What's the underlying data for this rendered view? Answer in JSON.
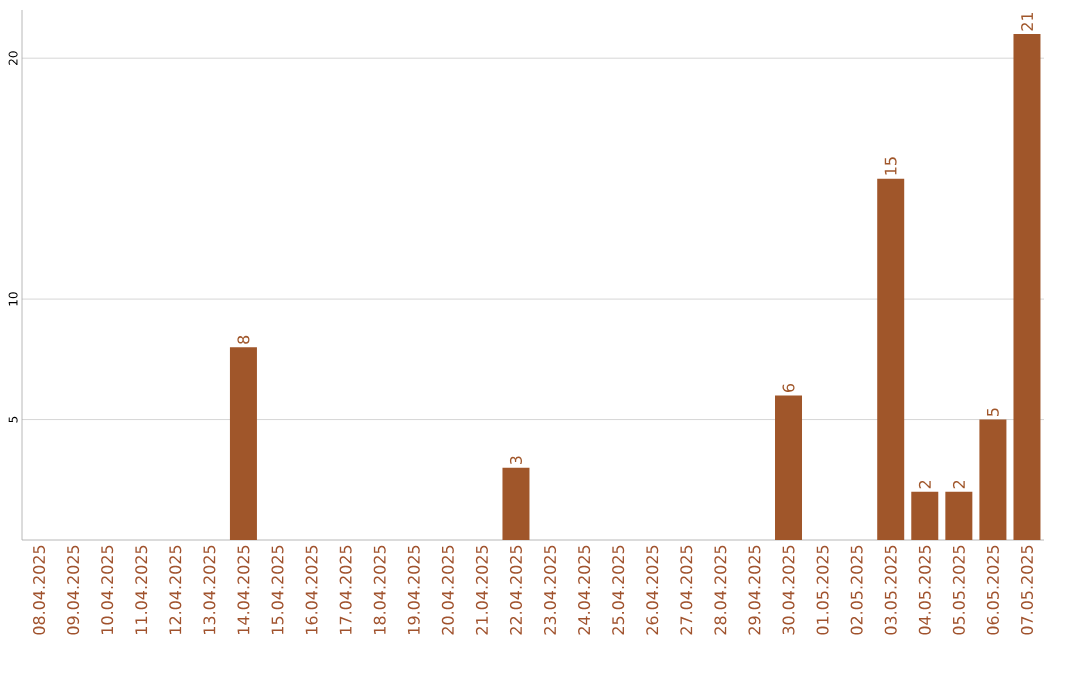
{
  "chart_data": {
    "type": "bar",
    "categories": [
      "08.04.2025",
      "09.04.2025",
      "10.04.2025",
      "11.04.2025",
      "12.04.2025",
      "13.04.2025",
      "14.04.2025",
      "15.04.2025",
      "16.04.2025",
      "17.04.2025",
      "18.04.2025",
      "19.04.2025",
      "20.04.2025",
      "21.04.2025",
      "22.04.2025",
      "23.04.2025",
      "24.04.2025",
      "25.04.2025",
      "26.04.2025",
      "27.04.2025",
      "28.04.2025",
      "29.04.2025",
      "30.04.2025",
      "01.05.2025",
      "02.05.2025",
      "03.05.2025",
      "04.05.2025",
      "05.05.2025",
      "06.05.2025",
      "07.05.2025"
    ],
    "values": [
      0,
      0,
      0,
      0,
      0,
      0,
      8,
      0,
      0,
      0,
      0,
      0,
      0,
      0,
      3,
      0,
      0,
      0,
      0,
      0,
      0,
      0,
      6,
      0,
      0,
      15,
      2,
      2,
      5,
      21
    ],
    "value_labels": [
      null,
      null,
      null,
      null,
      null,
      null,
      "8",
      null,
      null,
      null,
      null,
      null,
      null,
      null,
      "3",
      null,
      null,
      null,
      null,
      null,
      null,
      null,
      "6",
      null,
      null,
      "15",
      "2",
      "2",
      "5",
      "21"
    ],
    "color": "#a0562a",
    "ylim": [
      0,
      22
    ],
    "yticks": [
      5,
      10,
      20
    ],
    "grid": "y"
  }
}
